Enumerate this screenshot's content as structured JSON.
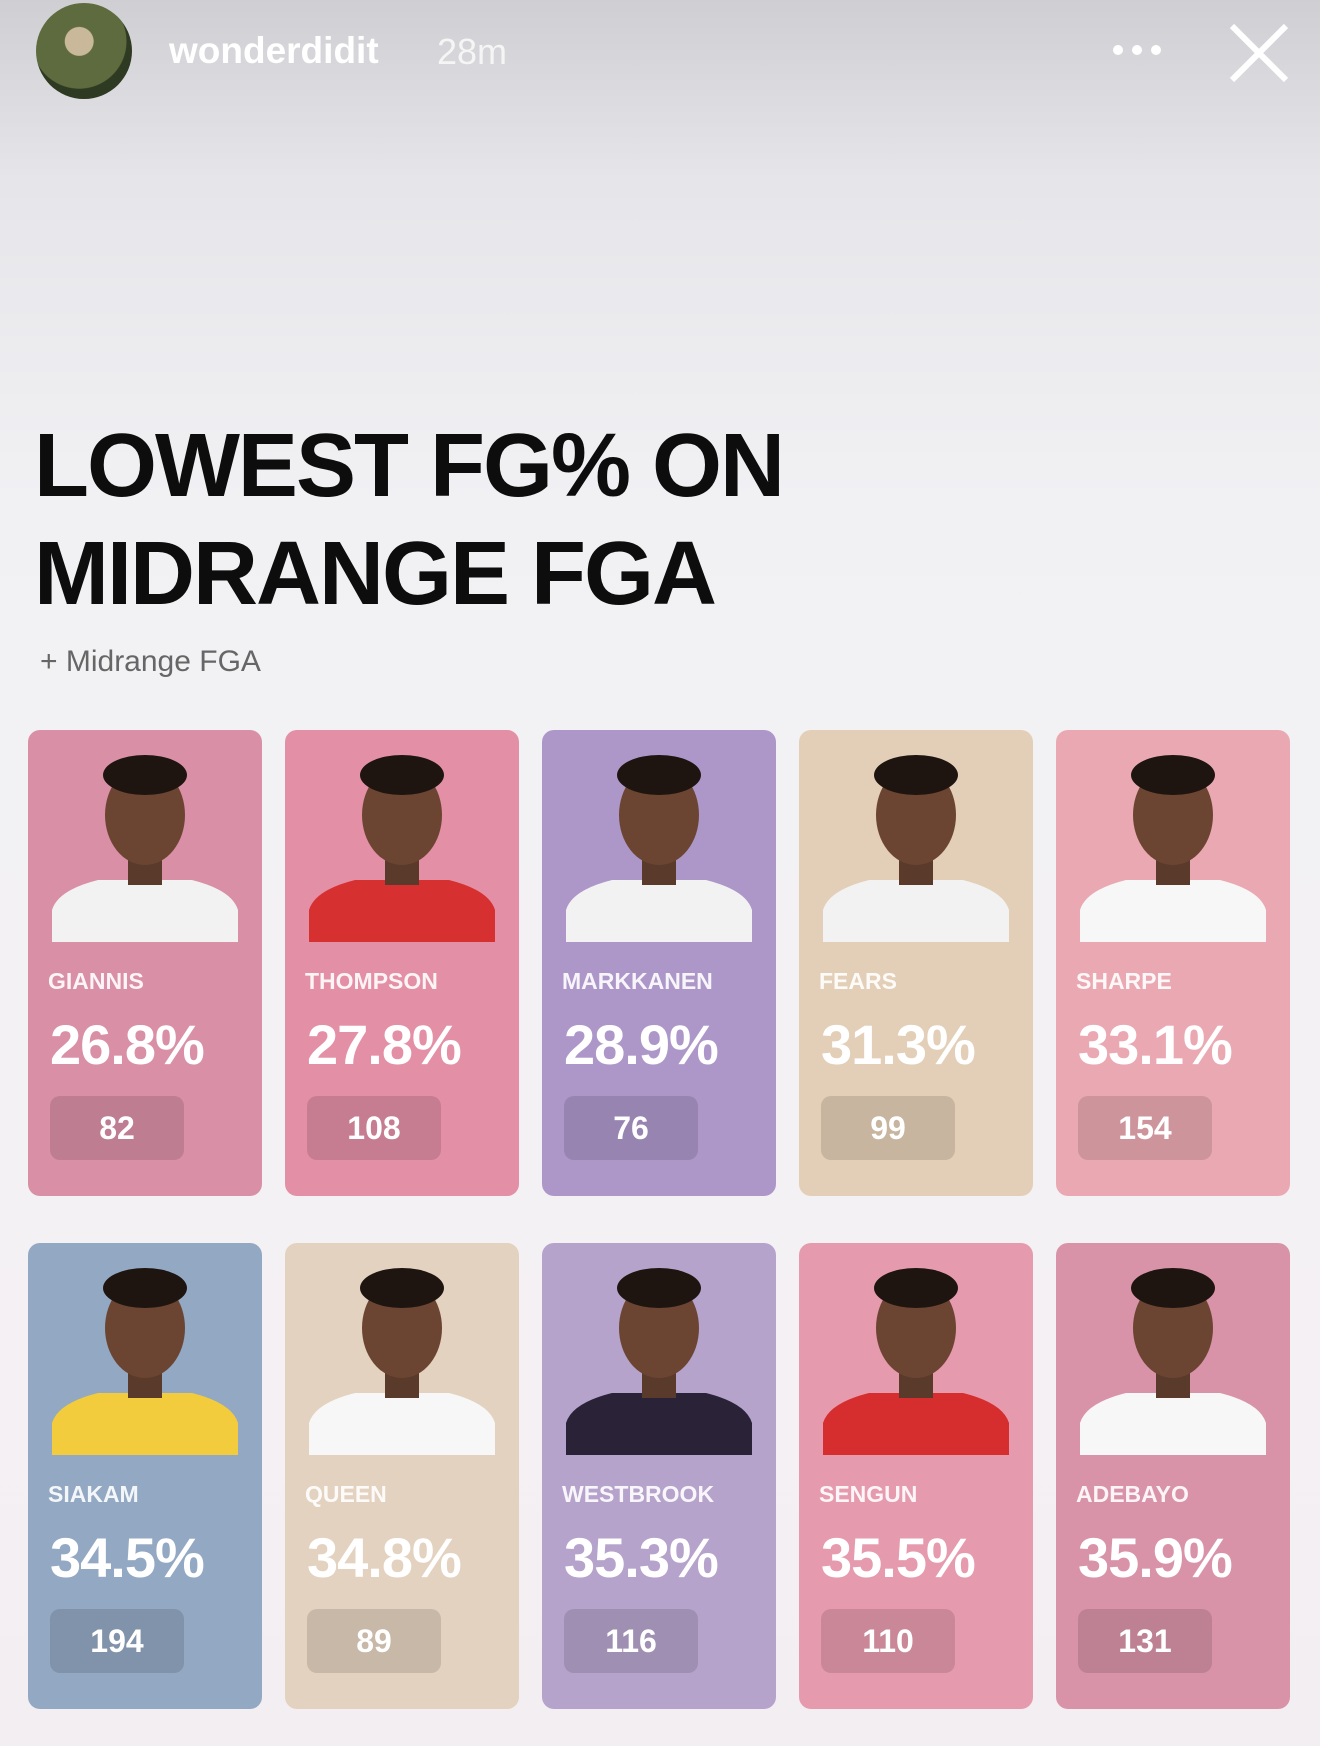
{
  "header": {
    "username": "wonderdidit",
    "time": "28m"
  },
  "title": "LOWEST FG% ON MIDRANGE FGA",
  "subtitle": "+ Midrange FGA",
  "cards": [
    {
      "name": "GIANNIS",
      "pct": "26.8%",
      "fga": 82
    },
    {
      "name": "THOMPSON",
      "pct": "27.8%",
      "fga": 108
    },
    {
      "name": "MARKKANEN",
      "pct": "28.9%",
      "fga": 76
    },
    {
      "name": "FEARS",
      "pct": "31.3%",
      "fga": 99
    },
    {
      "name": "SHARPE",
      "pct": "33.1%",
      "fga": 154
    },
    {
      "name": "SIAKAM",
      "pct": "34.5%",
      "fga": 194
    },
    {
      "name": "QUEEN",
      "pct": "34.8%",
      "fga": 89
    },
    {
      "name": "WESTBROOK",
      "pct": "35.3%",
      "fga": 116
    },
    {
      "name": "SENGUN",
      "pct": "35.5%",
      "fga": 110
    },
    {
      "name": "ADEBAYO",
      "pct": "35.9%",
      "fga": 131
    }
  ]
}
